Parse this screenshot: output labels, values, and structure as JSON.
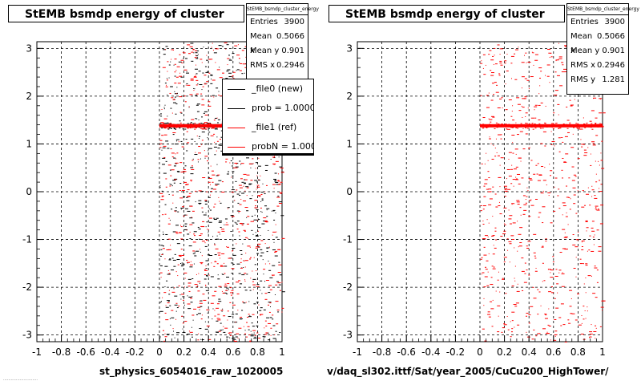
{
  "pads": [
    {
      "title": "StEMB bsmdp energy of cluster",
      "stats": {
        "name": "StEMB_bsmdp_cluster_energy",
        "rows": [
          {
            "label": "Entries",
            "value": "3900"
          },
          {
            "label": "Mean x",
            "value": "0.5066"
          },
          {
            "label": "Mean y",
            "value": "0.901"
          },
          {
            "label": "RMS x",
            "value": "0.2946"
          }
        ]
      },
      "legend": [
        {
          "label": "_file0 (new)",
          "color": "#000000"
        },
        {
          "label": "prob = 1.000000",
          "color": "#000000"
        },
        {
          "label": "_file1 (ref)",
          "color": "#ff0000"
        },
        {
          "label": "probN = 1.000000",
          "color": "#ff0000"
        }
      ],
      "xtitle": "st_physics_6054016_raw_1020005"
    },
    {
      "title": "StEMB bsmdp energy of cluster",
      "stats": {
        "name": "StEMB_bsmdp_cluster_energy",
        "rows": [
          {
            "label": "Entries",
            "value": "3900"
          },
          {
            "label": "Mean x",
            "value": "0.5066"
          },
          {
            "label": "Mean y",
            "value": "0.901"
          },
          {
            "label": "RMS x",
            "value": "0.2946"
          },
          {
            "label": "RMS y",
            "value": "1.281"
          }
        ]
      },
      "xtitle": "v/daq_sl302.ittf/Sat/year_2005/CuCu200_HighTower/"
    }
  ],
  "footnote": "...........................",
  "chart_data": [
    {
      "type": "scatter",
      "title": "StEMB bsmdp energy of cluster",
      "xlabel": "st_physics_6054016_raw_1020005",
      "ylabel": "",
      "xlim": [
        -1,
        1
      ],
      "ylim": [
        -3.14,
        3.14
      ],
      "x_ticks": [
        "-1",
        "-0.8",
        "-0.6",
        "-0.4",
        "-0.2",
        "0",
        "0.2",
        "0.4",
        "0.6",
        "0.8",
        "1"
      ],
      "y_ticks": [
        "-3",
        "-2",
        "-1",
        "0",
        "1",
        "2",
        "3"
      ],
      "grid": true,
      "series": [
        {
          "name": "_file0 (new)",
          "color": "#000000",
          "x_range": [
            0,
            1
          ],
          "y_range": [
            -3.14,
            3.14
          ],
          "dense_band_y": 1.38,
          "dense_segment": {
            "x": [
              0.86,
              0.88
            ],
            "y": -0.62
          }
        },
        {
          "name": "_file1 (ref)",
          "color": "#ff0000",
          "x_range": [
            0,
            1
          ],
          "y_range": [
            -3.14,
            3.14
          ],
          "dense_band_y": 1.38,
          "dense_segment": {
            "x": [
              0.86,
              0.88
            ],
            "y": -0.62
          }
        }
      ]
    },
    {
      "type": "scatter",
      "title": "StEMB bsmdp energy of cluster",
      "xlabel": "v/daq_sl302.ittf/Sat/year_2005/CuCu200_HighTower/",
      "ylabel": "",
      "xlim": [
        -1,
        1
      ],
      "ylim": [
        -3.14,
        3.14
      ],
      "x_ticks": [
        "-1",
        "-0.8",
        "-0.6",
        "-0.4",
        "-0.2",
        "0",
        "0.2",
        "0.4",
        "0.6",
        "0.8",
        "1"
      ],
      "y_ticks": [
        "-3",
        "-2",
        "-1",
        "0",
        "1",
        "2",
        "3"
      ],
      "grid": true,
      "series": [
        {
          "name": "",
          "color": "#ff0000",
          "x_range": [
            0,
            1
          ],
          "y_range": [
            -3.14,
            3.14
          ],
          "dense_band_y": 1.38,
          "dense_segment": {
            "x": [
              0.86,
              0.88
            ],
            "y": -0.62
          }
        }
      ]
    }
  ]
}
